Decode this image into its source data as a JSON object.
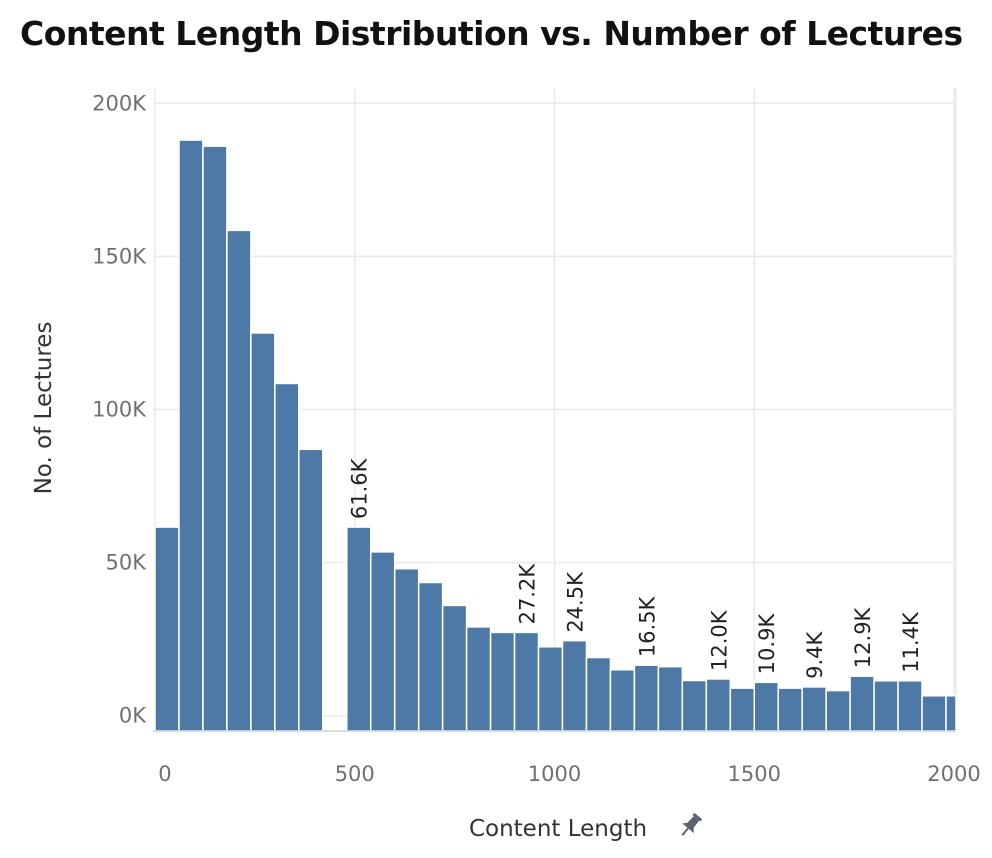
{
  "chart_data": {
    "type": "bar",
    "title": "Content Length Distribution vs. Number of Lectures",
    "xlabel": "Content Length",
    "ylabel": "No. of Lectures",
    "xlim": [
      -5,
      2005
    ],
    "ylim": [
      -5000,
      205000
    ],
    "bin_width": 60,
    "x_ticks": [
      0,
      500,
      1000,
      1500,
      2000
    ],
    "x_tick_labels": [
      "0",
      "500",
      "1000",
      "1500",
      "2000"
    ],
    "y_ticks": [
      0,
      50000,
      100000,
      150000,
      200000
    ],
    "y_tick_labels": [
      "0K",
      "50K",
      "100K",
      "150K",
      "200K"
    ],
    "grid": true,
    "bar_color": "#4e79a7",
    "bins": [
      {
        "x": 0,
        "value": 61600
      },
      {
        "x": 60,
        "value": 188000
      },
      {
        "x": 120,
        "value": 186000
      },
      {
        "x": 180,
        "value": 158500
      },
      {
        "x": 240,
        "value": 125000
      },
      {
        "x": 300,
        "value": 108500
      },
      {
        "x": 360,
        "value": 87000
      },
      {
        "x": 480,
        "value": 61600,
        "label": "61.6K"
      },
      {
        "x": 540,
        "value": 53500
      },
      {
        "x": 600,
        "value": 48000
      },
      {
        "x": 660,
        "value": 43500
      },
      {
        "x": 720,
        "value": 36000
      },
      {
        "x": 780,
        "value": 29000
      },
      {
        "x": 840,
        "value": 27200
      },
      {
        "x": 900,
        "value": 27200,
        "label": "27.2K"
      },
      {
        "x": 960,
        "value": 22500
      },
      {
        "x": 1020,
        "value": 24500,
        "label": "24.5K"
      },
      {
        "x": 1080,
        "value": 19000
      },
      {
        "x": 1140,
        "value": 15000
      },
      {
        "x": 1200,
        "value": 16500,
        "label": "16.5K"
      },
      {
        "x": 1260,
        "value": 16000
      },
      {
        "x": 1320,
        "value": 11500
      },
      {
        "x": 1380,
        "value": 12000,
        "label": "12.0K"
      },
      {
        "x": 1440,
        "value": 9000
      },
      {
        "x": 1500,
        "value": 10900,
        "label": "10.9K"
      },
      {
        "x": 1560,
        "value": 9000
      },
      {
        "x": 1620,
        "value": 9400,
        "label": "9.4K"
      },
      {
        "x": 1680,
        "value": 8200
      },
      {
        "x": 1740,
        "value": 12900,
        "label": "12.9K"
      },
      {
        "x": 1800,
        "value": 11400
      },
      {
        "x": 1860,
        "value": 11400,
        "label": "11.4K"
      },
      {
        "x": 1920,
        "value": 6500
      },
      {
        "x": 1980,
        "value": 6500
      }
    ]
  },
  "icons": {
    "pin": "pin-icon"
  }
}
